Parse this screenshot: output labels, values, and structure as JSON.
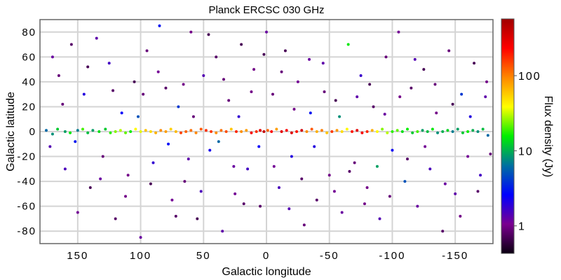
{
  "chart_data": {
    "type": "scatter",
    "title": "Planck ERCSC 030 GHz",
    "xlabel": "Galactic longitude",
    "ylabel": "Galactic latitude",
    "colorbar_label": "Flux density (Jy)",
    "xlim": [
      180,
      -180
    ],
    "ylim": [
      -90,
      90
    ],
    "xticks": [
      150,
      100,
      50,
      0,
      -50,
      -100,
      -150
    ],
    "xtick_labels": [
      "150",
      "100",
      "50",
      "0",
      "-50",
      "-100",
      "-150"
    ],
    "yticks": [
      80,
      60,
      40,
      20,
      0,
      -20,
      -40,
      -60,
      -80
    ],
    "ytick_labels": [
      "80",
      "60",
      "40",
      "20",
      "0",
      "-20",
      "-40",
      "-60",
      "-80"
    ],
    "colorbar_scale": "log",
    "colorbar_range": [
      0.43,
      570
    ],
    "colorbar_ticks": [
      100,
      10,
      1
    ],
    "colorbar_tick_labels": [
      "100",
      "10",
      "1"
    ],
    "colormap": [
      "#0a0010",
      "#7a0090",
      "#0000ff",
      "#0070a0",
      "#00ee00",
      "#ffff00",
      "#ff8800",
      "#ff0000",
      "#a00000"
    ],
    "grid": true,
    "points_columns": [
      "longitude",
      "latitude",
      "flux_jy"
    ],
    "points": [
      [
        175,
        1,
        6
      ],
      [
        170,
        -2,
        8
      ],
      [
        166,
        2,
        12
      ],
      [
        160,
        0,
        9
      ],
      [
        156,
        -1,
        15
      ],
      [
        150,
        1,
        7
      ],
      [
        146,
        2,
        20
      ],
      [
        142,
        -1,
        11
      ],
      [
        138,
        1,
        9
      ],
      [
        133,
        0,
        14
      ],
      [
        128,
        2,
        12
      ],
      [
        124,
        -1,
        18
      ],
      [
        120,
        0,
        25
      ],
      [
        116,
        1,
        30
      ],
      [
        112,
        -1,
        22
      ],
      [
        108,
        0,
        16
      ],
      [
        104,
        2,
        40
      ],
      [
        100,
        0,
        35
      ],
      [
        96,
        1,
        60
      ],
      [
        92,
        0,
        50
      ],
      [
        88,
        -1,
        70
      ],
      [
        84,
        1,
        90
      ],
      [
        80,
        0,
        80
      ],
      [
        76,
        2,
        55
      ],
      [
        72,
        0,
        65
      ],
      [
        68,
        -1,
        150
      ],
      [
        64,
        0,
        120
      ],
      [
        60,
        1,
        110
      ],
      [
        56,
        -1,
        95
      ],
      [
        52,
        2,
        130
      ],
      [
        48,
        1,
        170
      ],
      [
        44,
        0,
        160
      ],
      [
        40,
        -1,
        90
      ],
      [
        36,
        1,
        110
      ],
      [
        32,
        0,
        140
      ],
      [
        28,
        2,
        60
      ],
      [
        24,
        0,
        180
      ],
      [
        20,
        0,
        90
      ],
      [
        16,
        1,
        80
      ],
      [
        12,
        -1,
        250
      ],
      [
        8,
        0,
        170
      ],
      [
        5,
        1,
        300
      ],
      [
        2,
        0,
        400
      ],
      [
        -1,
        1,
        120
      ],
      [
        -4,
        0,
        220
      ],
      [
        -8,
        2,
        80
      ],
      [
        -12,
        0,
        300
      ],
      [
        -16,
        1,
        240
      ],
      [
        -20,
        -1,
        320
      ],
      [
        -24,
        0,
        200
      ],
      [
        -28,
        1,
        350
      ],
      [
        -32,
        0,
        90
      ],
      [
        -36,
        2,
        130
      ],
      [
        -40,
        0,
        70
      ],
      [
        -44,
        1,
        100
      ],
      [
        -48,
        -1,
        60
      ],
      [
        -52,
        0,
        160
      ],
      [
        -56,
        1,
        85
      ],
      [
        -60,
        0,
        50
      ],
      [
        -64,
        2,
        40
      ],
      [
        -68,
        0,
        200
      ],
      [
        -72,
        1,
        300
      ],
      [
        -76,
        -1,
        250
      ],
      [
        -80,
        0,
        180
      ],
      [
        -84,
        1,
        70
      ],
      [
        -88,
        0,
        40
      ],
      [
        -92,
        2,
        25
      ],
      [
        -96,
        -1,
        30
      ],
      [
        -100,
        0,
        18
      ],
      [
        -104,
        1,
        22
      ],
      [
        -108,
        0,
        14
      ],
      [
        -112,
        2,
        16
      ],
      [
        -116,
        -1,
        12
      ],
      [
        -120,
        0,
        20
      ],
      [
        -124,
        1,
        9
      ],
      [
        -128,
        0,
        11
      ],
      [
        -132,
        2,
        15
      ],
      [
        -136,
        -1,
        8
      ],
      [
        -140,
        0,
        10
      ],
      [
        -144,
        1,
        13
      ],
      [
        -148,
        0,
        7
      ],
      [
        -152,
        2,
        9
      ],
      [
        -156,
        -1,
        12
      ],
      [
        -160,
        0,
        16
      ],
      [
        -164,
        1,
        10
      ],
      [
        -168,
        0,
        8
      ],
      [
        -172,
        2,
        11
      ],
      [
        -176,
        -3,
        6
      ],
      [
        170,
        60,
        1.2
      ],
      [
        165,
        45,
        0.9
      ],
      [
        160,
        -30,
        1.5
      ],
      [
        155,
        70,
        0.8
      ],
      [
        150,
        -65,
        1.1
      ],
      [
        145,
        30,
        2.0
      ],
      [
        140,
        -45,
        0.7
      ],
      [
        135,
        75,
        1.3
      ],
      [
        130,
        -20,
        0.9
      ],
      [
        125,
        55,
        1.6
      ],
      [
        120,
        -70,
        0.8
      ],
      [
        115,
        15,
        2.5
      ],
      [
        110,
        -35,
        1.0
      ],
      [
        105,
        40,
        0.7
      ],
      [
        100,
        -85,
        1.2
      ],
      [
        95,
        65,
        0.9
      ],
      [
        90,
        -25,
        1.8
      ],
      [
        85,
        85,
        3.0
      ],
      [
        80,
        35,
        0.8
      ],
      [
        75,
        -55,
        1.1
      ],
      [
        70,
        20,
        4.0
      ],
      [
        65,
        -40,
        0.9
      ],
      [
        60,
        80,
        1.0
      ],
      [
        55,
        -70,
        0.7
      ],
      [
        50,
        45,
        1.4
      ],
      [
        45,
        -15,
        2.2
      ],
      [
        40,
        60,
        0.8
      ],
      [
        35,
        -80,
        1.3
      ],
      [
        30,
        25,
        0.9
      ],
      [
        25,
        -50,
        1.1
      ],
      [
        20,
        70,
        0.7
      ],
      [
        15,
        -30,
        1.6
      ],
      [
        10,
        50,
        1.0
      ],
      [
        5,
        -60,
        0.8
      ],
      [
        0,
        80,
        1.2
      ],
      [
        -5,
        30,
        0.9
      ],
      [
        -10,
        -45,
        1.5
      ],
      [
        -15,
        65,
        0.7
      ],
      [
        -20,
        -20,
        2.0
      ],
      [
        -25,
        40,
        1.1
      ],
      [
        -30,
        -75,
        0.9
      ],
      [
        -35,
        15,
        3.0
      ],
      [
        -40,
        -55,
        0.8
      ],
      [
        -45,
        55,
        1.3
      ],
      [
        -50,
        -35,
        1.0
      ],
      [
        -55,
        25,
        0.7
      ],
      [
        -60,
        -65,
        1.2
      ],
      [
        -65,
        70,
        15
      ],
      [
        -70,
        -25,
        0.9
      ],
      [
        -75,
        45,
        1.7
      ],
      [
        -80,
        -45,
        1.0
      ],
      [
        -85,
        20,
        0.8
      ],
      [
        -90,
        -70,
        1.4
      ],
      [
        -95,
        60,
        0.9
      ],
      [
        -100,
        -15,
        2.4
      ],
      [
        -105,
        80,
        1.1
      ],
      [
        -110,
        -40,
        5
      ],
      [
        -115,
        35,
        0.8
      ],
      [
        -120,
        -60,
        1.2
      ],
      [
        -125,
        50,
        0.7
      ],
      [
        -130,
        -30,
        1.5
      ],
      [
        -135,
        15,
        1.0
      ],
      [
        -140,
        -80,
        0.8
      ],
      [
        -145,
        65,
        0.9
      ],
      [
        -150,
        -50,
        1.3
      ],
      [
        -155,
        30,
        4
      ],
      [
        -160,
        -20,
        1.1
      ],
      [
        -165,
        55,
        0.7
      ],
      [
        -170,
        -35,
        1.6
      ],
      [
        -175,
        40,
        1.0
      ],
      [
        172,
        -12,
        1.4
      ],
      [
        162,
        22,
        0.9
      ],
      [
        152,
        -8,
        3
      ],
      [
        142,
        52,
        0.7
      ],
      [
        132,
        -38,
        1.2
      ],
      [
        122,
        33,
        0.8
      ],
      [
        112,
        -52,
        1.0
      ],
      [
        102,
        12,
        5
      ],
      [
        98,
        30,
        0.9
      ],
      [
        92,
        -42,
        0.7
      ],
      [
        86,
        48,
        1.1
      ],
      [
        78,
        -10,
        2.8
      ],
      [
        72,
        -68,
        0.8
      ],
      [
        66,
        38,
        1.0
      ],
      [
        62,
        -22,
        1.3
      ],
      [
        58,
        12,
        0.9
      ],
      [
        52,
        -48,
        1.5
      ],
      [
        46,
        78,
        0.7
      ],
      [
        38,
        -8,
        6
      ],
      [
        34,
        42,
        0.9
      ],
      [
        26,
        -28,
        1.2
      ],
      [
        22,
        12,
        1.8
      ],
      [
        18,
        -58,
        0.8
      ],
      [
        12,
        32,
        1.0
      ],
      [
        6,
        -12,
        2.5
      ],
      [
        2,
        62,
        0.7
      ],
      [
        -6,
        -28,
        1.1
      ],
      [
        -12,
        48,
        0.9
      ],
      [
        -18,
        -62,
        1.4
      ],
      [
        -22,
        18,
        1.0
      ],
      [
        -28,
        -38,
        0.8
      ],
      [
        -34,
        58,
        1.2
      ],
      [
        -38,
        -12,
        2.0
      ],
      [
        -46,
        32,
        0.9
      ],
      [
        -54,
        -48,
        1.1
      ],
      [
        -58,
        12,
        8
      ],
      [
        -66,
        -32,
        0.8
      ],
      [
        -72,
        28,
        1.3
      ],
      [
        -78,
        -58,
        1.0
      ],
      [
        -82,
        38,
        0.7
      ],
      [
        -88,
        -28,
        9
      ],
      [
        -94,
        14,
        1.2
      ],
      [
        -98,
        -52,
        0.9
      ],
      [
        -106,
        28,
        1.0
      ],
      [
        -112,
        -22,
        0.8
      ],
      [
        -118,
        58,
        1.4
      ],
      [
        -126,
        -12,
        1.1
      ],
      [
        -134,
        38,
        0.9
      ],
      [
        -142,
        -42,
        1.2
      ],
      [
        -148,
        22,
        0.7
      ],
      [
        -154,
        -68,
        1.0
      ],
      [
        -162,
        12,
        2.0
      ],
      [
        -168,
        -48,
        0.8
      ],
      [
        -174,
        28,
        1.3
      ],
      [
        -178,
        -18,
        0.9
      ]
    ]
  }
}
